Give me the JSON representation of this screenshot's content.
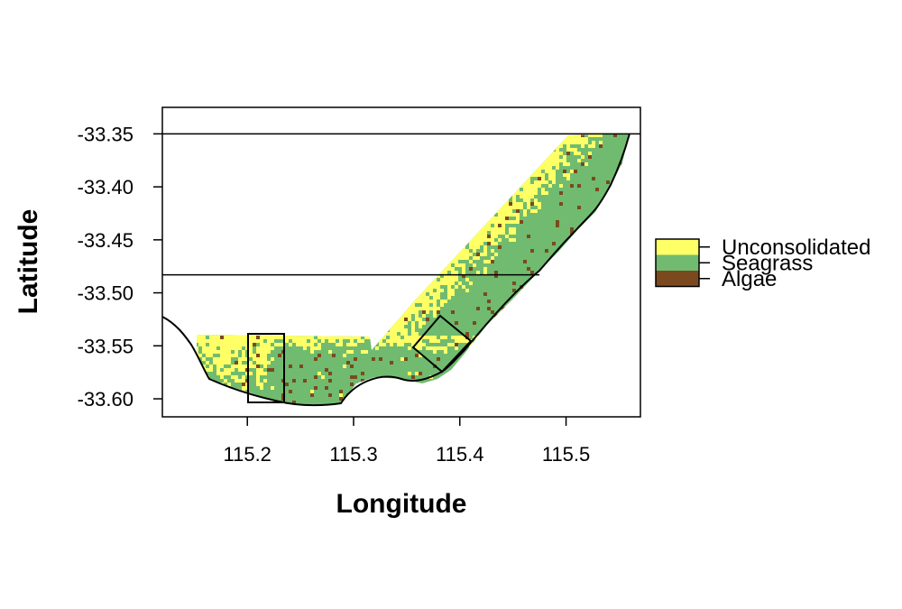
{
  "map": {
    "xlabel": "Longitude",
    "ylabel": "Latitude",
    "x_ticks": [
      "115.2",
      "115.3",
      "115.4",
      "115.5"
    ],
    "y_ticks": [
      "-33.35",
      "-33.40",
      "-33.45",
      "-33.50",
      "-33.55",
      "-33.60"
    ],
    "xlim": [
      115.12,
      115.57
    ],
    "ylim": [
      -33.617,
      -33.325
    ],
    "x_tick_values": [
      115.2,
      115.3,
      115.4,
      115.5
    ],
    "y_tick_values": [
      -33.35,
      -33.4,
      -33.45,
      -33.5,
      -33.55,
      -33.6
    ],
    "reference_lines_lat": [
      -33.35,
      -33.483
    ],
    "legend": [
      {
        "label": "Unconsolidated",
        "color": "#ffff66"
      },
      {
        "label": "Seagrass",
        "color": "#70bb70"
      },
      {
        "label": "Algae",
        "color": "#7a4a1e"
      }
    ],
    "habitat_colors": {
      "unconsolidated": "#ffff66",
      "seagrass": "#70bb70",
      "algae": "#7a4a1e"
    }
  }
}
